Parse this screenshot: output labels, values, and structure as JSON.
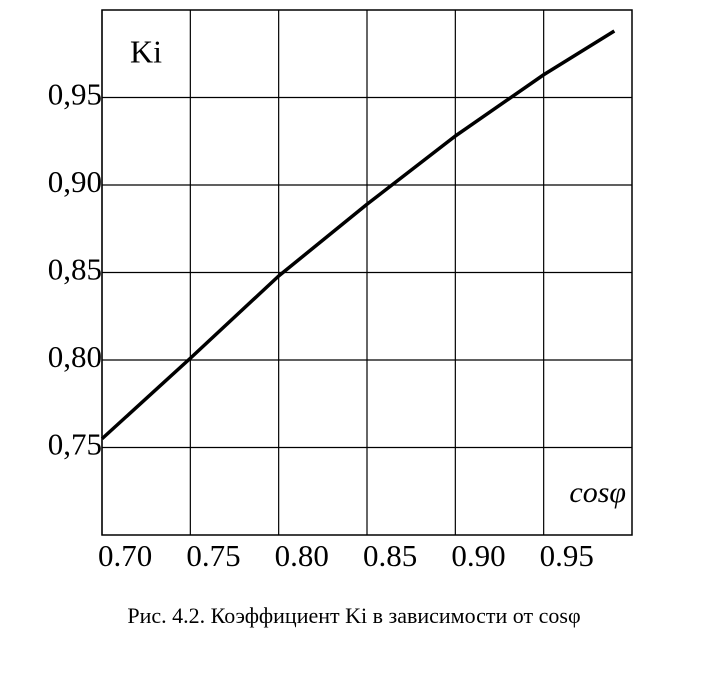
{
  "chart_data": {
    "type": "line",
    "y_label": "Ki",
    "x_label": "cosφ",
    "caption": "Рис. 4.2. Коэффициент Ki в зависимости от cosφ",
    "x": [
      0.7,
      0.75,
      0.8,
      0.85,
      0.9,
      0.95,
      0.99
    ],
    "values": [
      0.755,
      0.801,
      0.848,
      0.889,
      0.928,
      0.963,
      0.988
    ],
    "color": "#000000",
    "xlim": [
      0.7,
      1.0
    ],
    "ylim": [
      0.7,
      1.0
    ],
    "xticks": [
      {
        "value": 0.7,
        "label": "0.70"
      },
      {
        "value": 0.75,
        "label": "0.75"
      },
      {
        "value": 0.8,
        "label": "0.80"
      },
      {
        "value": 0.85,
        "label": "0.85"
      },
      {
        "value": 0.9,
        "label": "0.90"
      },
      {
        "value": 0.95,
        "label": "0.95"
      }
    ],
    "yticks": [
      {
        "value": 0.75,
        "label": "0,75"
      },
      {
        "value": 0.8,
        "label": "0,80"
      },
      {
        "value": 0.85,
        "label": "0,85"
      },
      {
        "value": 0.9,
        "label": "0,90"
      },
      {
        "value": 0.95,
        "label": "0,95"
      }
    ],
    "grid": true
  }
}
